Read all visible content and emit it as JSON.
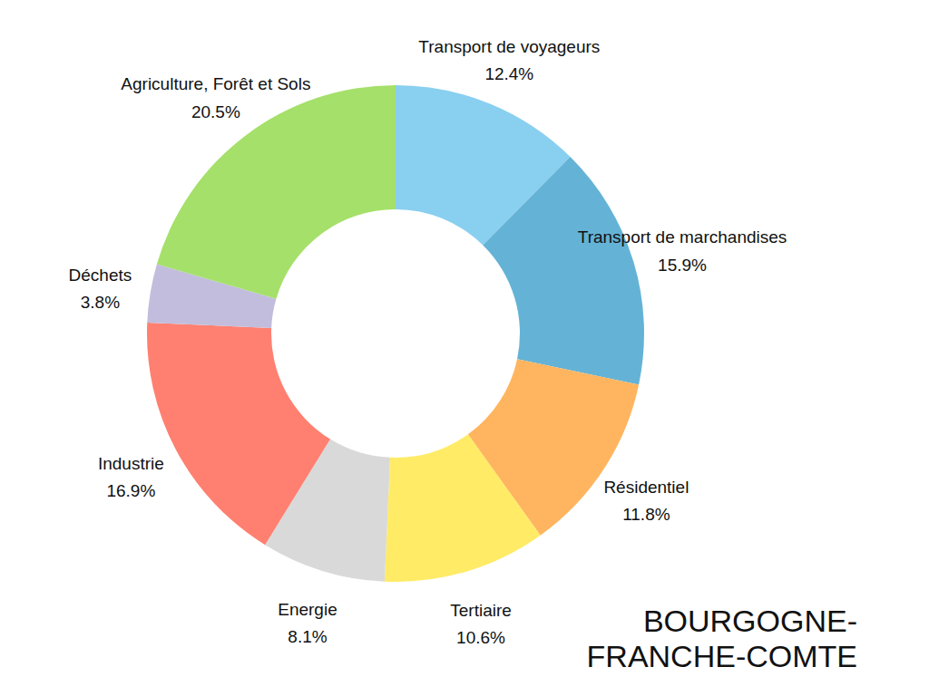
{
  "chart_data": {
    "type": "pie",
    "title": "BOURGOGNE-FRANCHE-COMTE",
    "categories": [
      "Transport de voyageurs",
      "Transport de marchandises",
      "Résidentiel",
      "Tertiaire",
      "Energie",
      "Industrie",
      "Déchets",
      "Agriculture, Forêt et Sols"
    ],
    "values": [
      12.4,
      15.9,
      11.8,
      10.6,
      8.1,
      16.9,
      3.8,
      20.5
    ],
    "value_labels": [
      "12.4%",
      "15.9%",
      "11.8%",
      "10.6%",
      "8.1%",
      "16.9%",
      "3.8%",
      "20.5%"
    ],
    "colors": [
      "#89cff0",
      "#64b3d6",
      "#ffb55f",
      "#ffeb66",
      "#d9d9d9",
      "#ff8070",
      "#c2bddd",
      "#a5e06a"
    ],
    "data_labels": true
  }
}
